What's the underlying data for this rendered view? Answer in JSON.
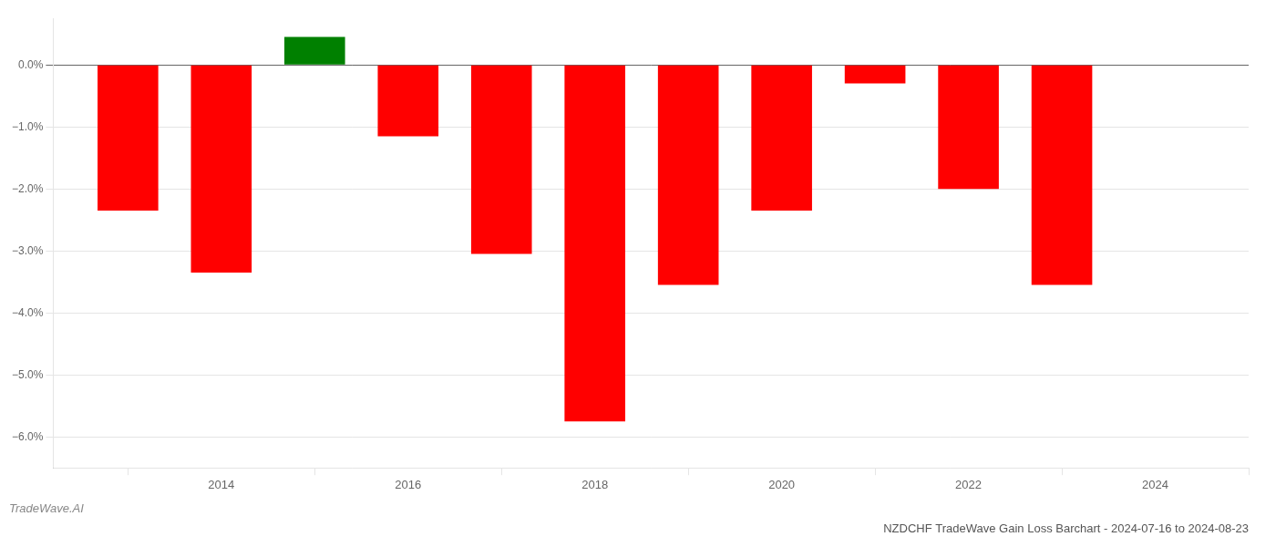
{
  "chart_data": {
    "type": "bar",
    "title": "NZDCHF TradeWave Gain Loss Barchart - 2024-07-16 to 2024-08-23",
    "annotations": [
      "TradeWave.AI"
    ],
    "x": [
      2013,
      2014,
      2015,
      2016,
      2017,
      2018,
      2019,
      2020,
      2021,
      2022,
      2023
    ],
    "values": [
      -2.35,
      -3.35,
      0.45,
      -1.15,
      -3.05,
      -5.75,
      -3.55,
      -2.35,
      -0.3,
      -2.0,
      -3.55
    ],
    "colors": [
      "#ff0000",
      "#ff0000",
      "#008000",
      "#ff0000",
      "#ff0000",
      "#ff0000",
      "#ff0000",
      "#ff0000",
      "#ff0000",
      "#ff0000",
      "#ff0000"
    ],
    "xlim": [
      2012.2,
      2025.0
    ],
    "xticks": [
      2014,
      2016,
      2018,
      2020,
      2022,
      2024
    ],
    "ylim": [
      -6.5,
      0.75
    ],
    "yticks": [
      {
        "value": 0.0,
        "label": "0.0%"
      },
      {
        "value": -1.0,
        "label": "−1.0%"
      },
      {
        "value": -2.0,
        "label": "−2.0%"
      },
      {
        "value": -3.0,
        "label": "−3.0%"
      },
      {
        "value": -4.0,
        "label": "−4.0%"
      },
      {
        "value": -5.0,
        "label": "−5.0%"
      },
      {
        "value": -6.0,
        "label": "−6.0%"
      }
    ],
    "grid": true
  }
}
